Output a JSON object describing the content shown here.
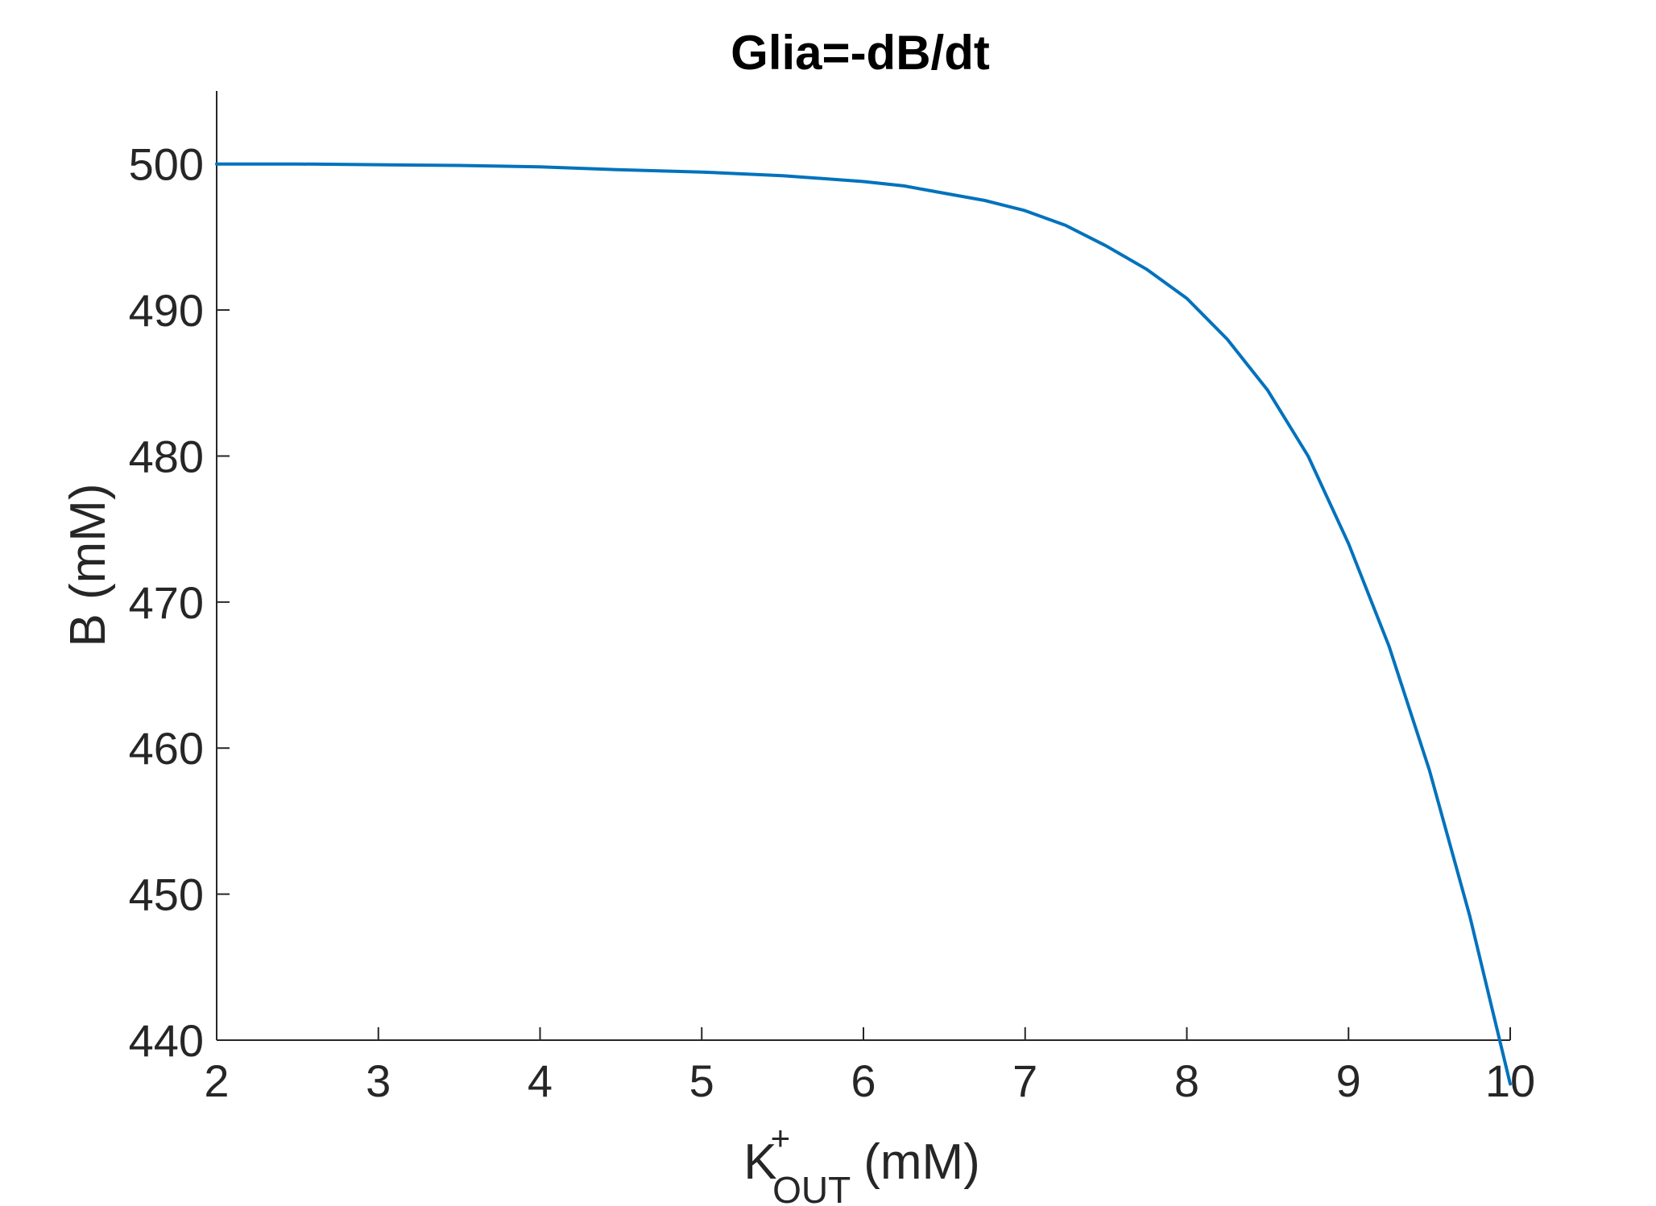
{
  "chart_data": {
    "type": "line",
    "title": "Glia=-dB/dt",
    "xlabel": {
      "base": "K",
      "superscript": "+",
      "subscript": "OUT",
      "unit": "(mM)"
    },
    "ylabel": "B (mM)",
    "xlim": [
      2,
      10
    ],
    "ylim": [
      440,
      505
    ],
    "xticks": [
      "2",
      "3",
      "4",
      "5",
      "6",
      "7",
      "8",
      "9",
      "10"
    ],
    "yticks": [
      "440",
      "450",
      "460",
      "470",
      "480",
      "490",
      "500"
    ],
    "grid": false,
    "series": [
      {
        "color": "#0072BD",
        "x": [
          2,
          2.5,
          3,
          3.5,
          4,
          4.5,
          5,
          5.5,
          6,
          6.25,
          6.5,
          6.75,
          7,
          7.25,
          7.5,
          7.75,
          8,
          8.25,
          8.5,
          8.75,
          9,
          9.25,
          9.5,
          9.75,
          10
        ],
        "y": [
          500.0,
          500.0,
          499.95,
          499.9,
          499.8,
          499.6,
          499.45,
          499.2,
          498.8,
          498.5,
          498.0,
          497.5,
          496.8,
          495.8,
          494.4,
          492.8,
          490.8,
          488.0,
          484.5,
          480.0,
          474.0,
          467.0,
          458.5,
          448.5,
          437.0
        ]
      }
    ]
  }
}
